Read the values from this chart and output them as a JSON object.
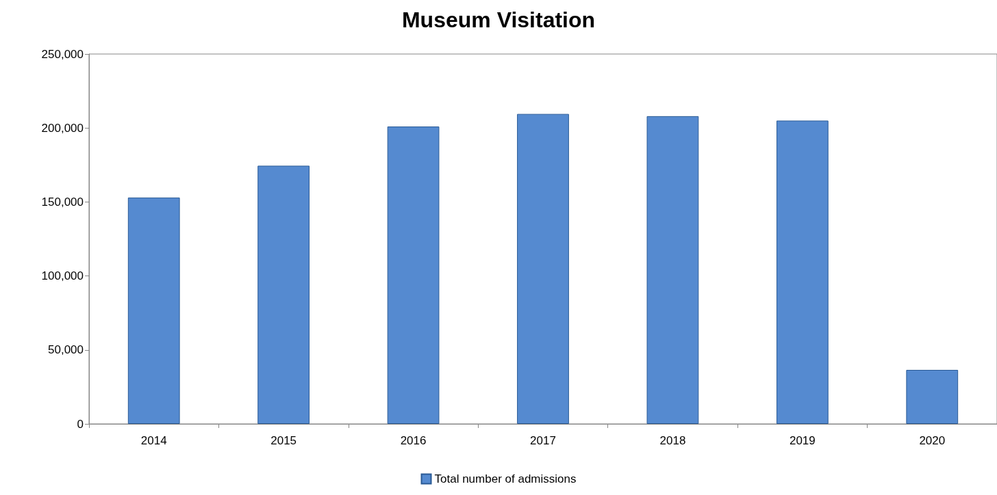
{
  "chart_data": {
    "type": "bar",
    "title": "Museum Visitation",
    "categories": [
      "2014",
      "2015",
      "2016",
      "2017",
      "2018",
      "2019",
      "2020"
    ],
    "series": [
      {
        "name": "Total number of admissions",
        "color": "#558ad0",
        "values": [
          153000,
          174500,
          201000,
          209500,
          208000,
          205000,
          36500
        ]
      }
    ],
    "ylim": [
      0,
      250000
    ],
    "yticks": [
      {
        "value": 0,
        "label": "0"
      },
      {
        "value": 50000,
        "label": "50,000"
      },
      {
        "value": 100000,
        "label": "100,000"
      },
      {
        "value": 150000,
        "label": "150,000"
      },
      {
        "value": 200000,
        "label": "200,000"
      },
      {
        "value": 250000,
        "label": "250,000"
      }
    ],
    "grid": false,
    "legend": "bottom"
  }
}
